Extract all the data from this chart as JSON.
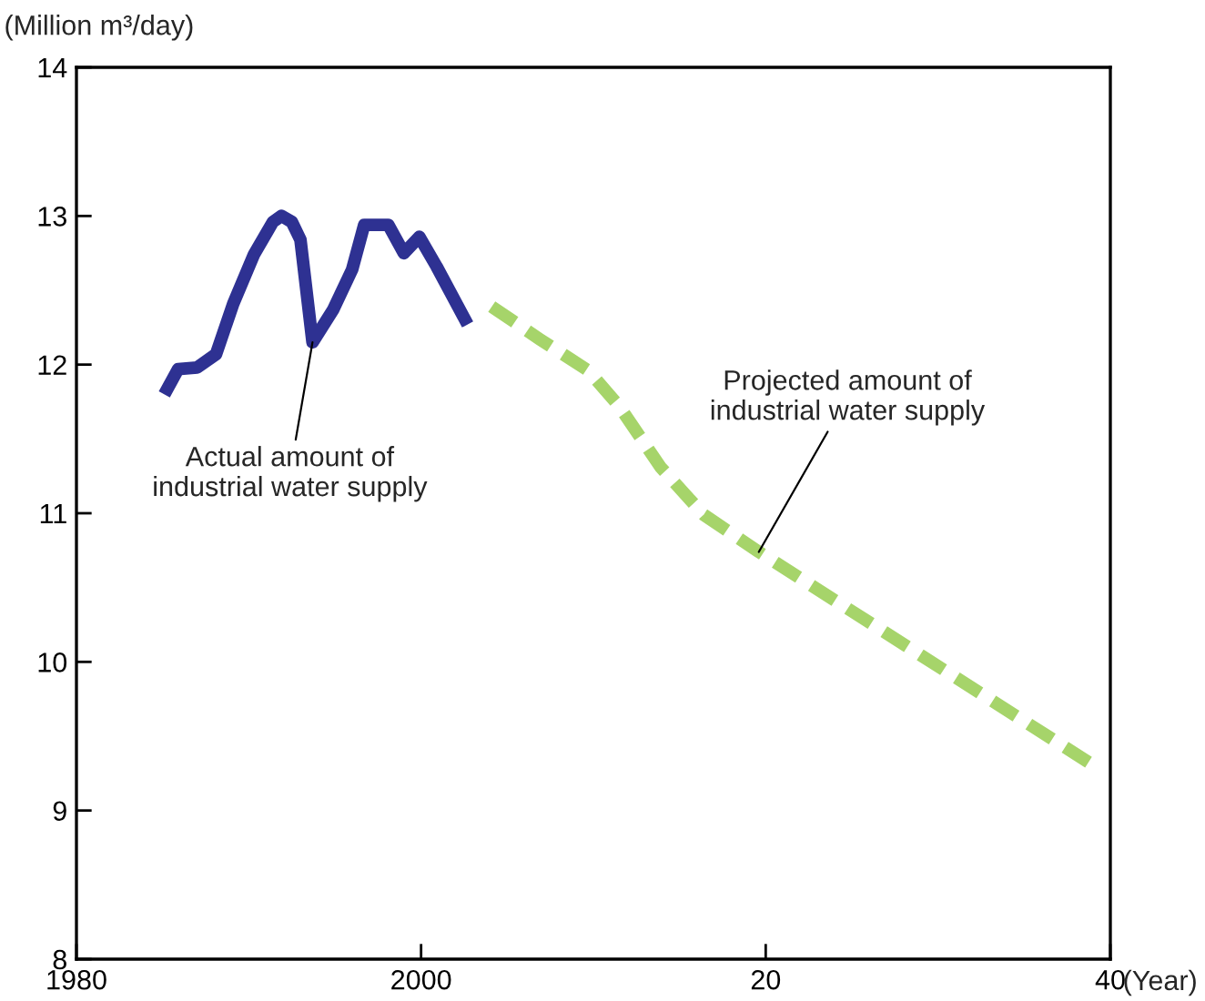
{
  "chart_data": {
    "type": "line",
    "ylabel": "(Million m³/day)",
    "xlabel": "(Year)",
    "xlim": [
      1980,
      2040
    ],
    "xticks": [
      1980,
      2000,
      {
        "value": 2020,
        "label": "20"
      },
      {
        "value": 2040,
        "label": "40"
      }
    ],
    "ylim": [
      8,
      14
    ],
    "yticks": [
      8,
      9,
      10,
      11,
      12,
      13,
      14
    ],
    "grid": false,
    "legend": false,
    "marker": "none",
    "series": [
      {
        "color": "#2e3192",
        "line_style": "solid",
        "x": [
          1985.1,
          1985.9,
          1987.0,
          1988.1,
          1989.1,
          1990.3,
          1991.4,
          1991.9,
          1992.5,
          1993.0,
          1993.7,
          1994.9,
          1996.0,
          1996.7,
          1998.1,
          1999.0,
          1999.9,
          2000.9,
          2002.7
        ],
        "values": [
          11.8,
          11.97,
          11.98,
          12.07,
          12.41,
          12.74,
          12.96,
          13.0,
          12.96,
          12.84,
          12.15,
          12.37,
          12.64,
          12.94,
          12.94,
          12.75,
          12.86,
          12.66,
          12.27
        ]
      },
      {
        "color": "#a6d46a",
        "line_style": "dashed",
        "x": [
          2004.1,
          2006.9,
          2009.7,
          2011.5,
          2013.9,
          2016.4,
          2019.6,
          2038.8
        ],
        "values": [
          12.39,
          12.17,
          11.96,
          11.72,
          11.31,
          10.99,
          10.74,
          9.32
        ]
      }
    ],
    "annotations": [
      {
        "text": "Actual amount of\nindustrial water supply",
        "x": 1993.7,
        "y": 12.15
      },
      {
        "text": "Projected amount of\nindustrial water supply",
        "x": 2019.6,
        "y": 10.74
      }
    ]
  }
}
